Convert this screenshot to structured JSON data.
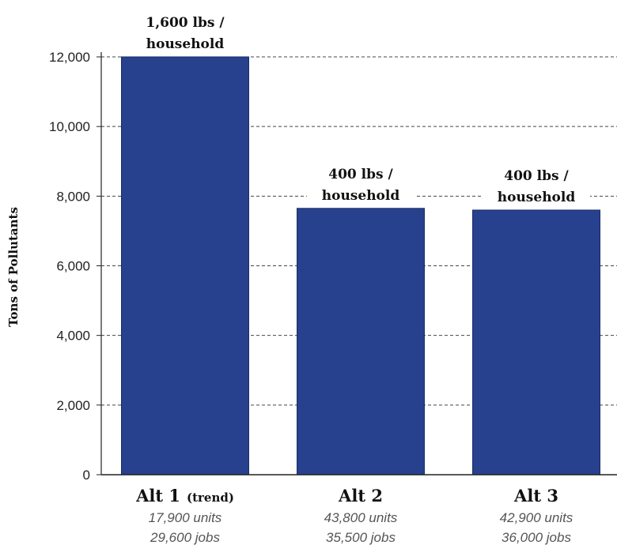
{
  "chart_data": {
    "type": "bar",
    "ylabel": "Tons of Pollutants",
    "ylim": [
      0,
      12000
    ],
    "yticks": [
      0,
      2000,
      4000,
      6000,
      8000,
      10000,
      12000
    ],
    "ytick_labels": [
      "0",
      "2,000",
      "4,000",
      "6,000",
      "8,000",
      "10,000",
      "12,000"
    ],
    "grid": "horizontal-dashed",
    "bar_color": "#27418e",
    "categories": [
      {
        "name": "Alt 1",
        "qualifier": "(trend)",
        "units": "17,900 units",
        "jobs": "29,600 jobs",
        "value": 12000,
        "label_line1": "1,600 lbs /",
        "label_line2": "household"
      },
      {
        "name": "Alt 2",
        "qualifier": "",
        "units": "43,800 units",
        "jobs": "35,500 jobs",
        "value": 7650,
        "label_line1": "400 lbs /",
        "label_line2": "household"
      },
      {
        "name": "Alt 3",
        "qualifier": "",
        "units": "42,900 units",
        "jobs": "36,000 jobs",
        "value": 7600,
        "label_line1": "400 lbs /",
        "label_line2": "household"
      }
    ]
  }
}
